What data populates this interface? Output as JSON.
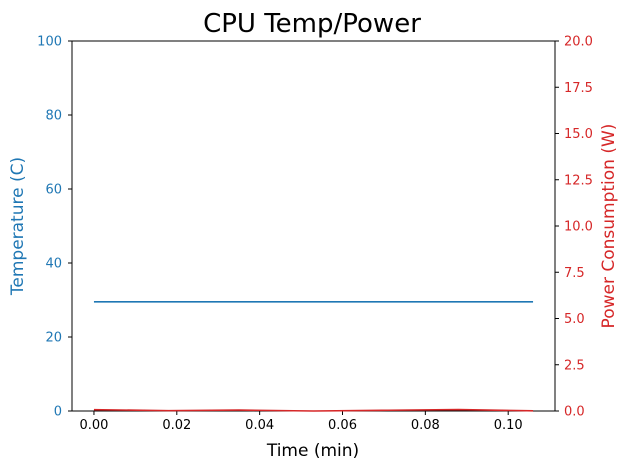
{
  "chart_data": {
    "type": "line",
    "title": "CPU Temp/Power",
    "xlabel": "Time (min)",
    "ylabel_left": "Temperature (C)",
    "ylabel_right": "Power Consumption (W)",
    "xlim": [
      -0.0053,
      0.1113
    ],
    "ylim_left": [
      0,
      100
    ],
    "ylim_right": [
      0,
      20
    ],
    "x_ticks": [
      0.0,
      0.02,
      0.04,
      0.06,
      0.08,
      0.1
    ],
    "x_tick_labels": [
      "0.00",
      "0.02",
      "0.04",
      "0.06",
      "0.08",
      "0.10"
    ],
    "y_left_ticks": [
      0,
      20,
      40,
      60,
      80,
      100
    ],
    "y_left_tick_labels": [
      "0",
      "20",
      "40",
      "60",
      "80",
      "100"
    ],
    "y_right_ticks": [
      0,
      2.5,
      5,
      7.5,
      10,
      12.5,
      15,
      17.5,
      20
    ],
    "y_right_tick_labels": [
      "0.0",
      "2.5",
      "5.0",
      "7.5",
      "10.0",
      "12.5",
      "15.0",
      "17.5",
      "20.0"
    ],
    "grid": false,
    "series": [
      {
        "axis": "left",
        "color": "#1f77b4",
        "x": [
          0.0,
          0.018,
          0.035,
          0.053,
          0.071,
          0.088,
          0.106
        ],
        "y": [
          29.5,
          29.5,
          29.5,
          29.5,
          29.5,
          29.5,
          29.5
        ]
      },
      {
        "axis": "right",
        "color": "#d62728",
        "x": [
          0.0,
          0.018,
          0.035,
          0.053,
          0.071,
          0.088,
          0.106
        ],
        "y": [
          0.07,
          0.02,
          0.05,
          0.0,
          0.04,
          0.08,
          0.01
        ]
      }
    ],
    "colors": {
      "left_axis": "#1f77b4",
      "right_axis": "#d62728",
      "text": "#000000"
    }
  }
}
